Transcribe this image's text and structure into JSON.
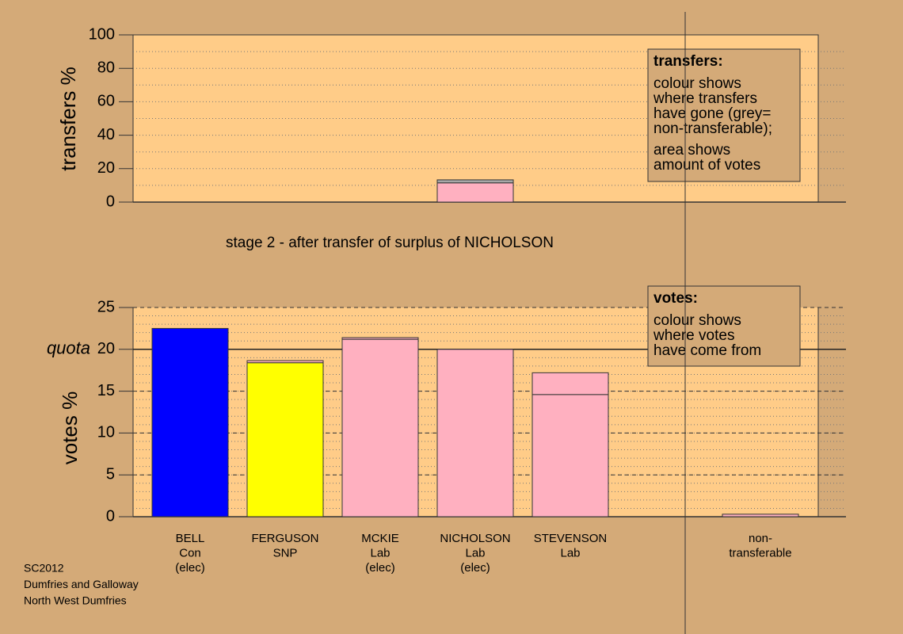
{
  "chart_data": [
    {
      "type": "bar",
      "ylabel": "transfers %",
      "ylim": [
        0,
        100
      ],
      "yticks": [
        0,
        20,
        40,
        60,
        80,
        100
      ],
      "minor_grid_step": 10,
      "series": [
        {
          "color": "#ffb0c0",
          "values": [
            0,
            0,
            0,
            11.5,
            0,
            0
          ]
        },
        {
          "color": "#a8a8a8",
          "values": [
            0,
            0,
            0,
            1.8,
            0,
            0
          ]
        }
      ],
      "note": {
        "title": "transfers:",
        "paragraphs": [
          [
            "colour shows",
            "where transfers",
            "have gone (grey=",
            "non-transferable);"
          ],
          [
            "area shows",
            "amount of votes"
          ]
        ]
      }
    },
    {
      "type": "bar",
      "title": "stage 2 - after transfer of surplus of NICHOLSON",
      "ylabel": "votes %",
      "ylim": [
        0,
        25
      ],
      "yticks": [
        0,
        5,
        10,
        15,
        20,
        25
      ],
      "minor_grid_step": 1,
      "quota": {
        "value": 20,
        "label": "quota"
      },
      "categories": [
        "BELL",
        "FERGUSON",
        "MCKIE",
        "NICHOLSON",
        "STEVENSON",
        "non-"
      ],
      "parties": [
        "Con",
        "SNP",
        "Lab",
        "Lab",
        "Lab",
        "transferable"
      ],
      "status": [
        "(elec)",
        null,
        "(elec)",
        "(elec)",
        null,
        null
      ],
      "colors": [
        "#0000ff",
        "#ffff00",
        "#ffb0c0",
        "#ffb0c0",
        "#ffb0c0",
        "#ffb0c0"
      ],
      "series": [
        {
          "values": [
            22.5,
            18.4,
            21.2,
            20,
            14.6,
            0.3
          ]
        },
        {
          "color": "#ffb0c0",
          "values": [
            0,
            0.25,
            0.2,
            0,
            2.6,
            0
          ]
        }
      ],
      "note": {
        "title": "votes:",
        "paragraphs": [
          [
            "colour shows",
            "where votes",
            "have come from"
          ]
        ]
      }
    }
  ],
  "footer": [
    "SC2012",
    "Dumfries and Galloway",
    "North West Dumfries"
  ]
}
